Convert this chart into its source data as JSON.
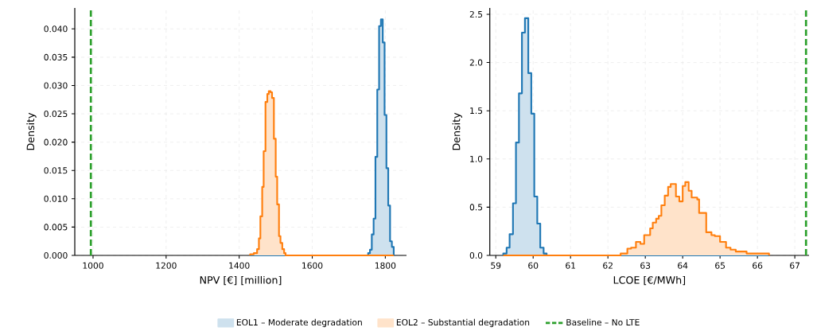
{
  "chart_data": [
    {
      "type": "histogram",
      "xlabel": "NPV [€] [million]",
      "ylabel": "Density",
      "xlim": [
        950,
        1858
      ],
      "ylim": [
        0,
        0.0437
      ],
      "xticks": [
        1000,
        1200,
        1400,
        1600,
        1800
      ],
      "yticks": [
        {
          "value": 0,
          "label": "0.000"
        },
        {
          "value": 0.005,
          "label": "0.005"
        },
        {
          "value": 0.01,
          "label": "0.010"
        },
        {
          "value": 0.015,
          "label": "0.015"
        },
        {
          "value": 0.02,
          "label": "0.020"
        },
        {
          "value": 0.025,
          "label": "0.025"
        },
        {
          "value": 0.03,
          "label": "0.030"
        },
        {
          "value": 0.035,
          "label": "0.035"
        },
        {
          "value": 0.04,
          "label": "0.040"
        }
      ],
      "grid": true,
      "legend": "bottom",
      "bins": [
        1430,
        1440,
        1449,
        1454,
        1458,
        1463,
        1467,
        1472,
        1477,
        1481,
        1486,
        1490,
        1495,
        1500,
        1504,
        1509,
        1513,
        1518,
        1523,
        1527,
        1753,
        1758,
        1763,
        1768,
        1773,
        1778,
        1783,
        1788,
        1793,
        1798,
        1803,
        1808,
        1813,
        1818,
        1823
      ],
      "series": [
        {
          "name": "EOL1 – Moderate degradation",
          "color": "#1f77b4",
          "values": [
            0,
            0,
            0,
            0,
            0,
            0,
            0,
            0,
            0,
            0,
            0,
            0,
            0,
            0,
            0,
            0,
            0,
            0,
            0,
            0,
            0.0004,
            0.001,
            0.0037,
            0.0065,
            0.0174,
            0.0293,
            0.0405,
            0.0417,
            0.0376,
            0.0248,
            0.0154,
            0.0088,
            0.0025,
            0.0015
          ]
        },
        {
          "name": "EOL2 – Substantial degradation",
          "color": "#ff7f0e",
          "values": [
            0.0002,
            0.0004,
            0.0011,
            0.003,
            0.0069,
            0.0121,
            0.0184,
            0.0271,
            0.0285,
            0.029,
            0.0288,
            0.0278,
            0.0206,
            0.0139,
            0.009,
            0.0034,
            0.0022,
            0.0011,
            0.0004,
            0,
            0,
            0,
            0,
            0,
            0,
            0,
            0,
            0,
            0,
            0,
            0,
            0,
            0,
            0
          ]
        }
      ],
      "ref_lines": [
        {
          "axis": "x",
          "value": 994,
          "label": "Baseline – No LTE",
          "color": "#2ca02c",
          "line_style": "dashed"
        }
      ]
    },
    {
      "type": "histogram",
      "xlabel": "LCOE [€/MWh]",
      "ylabel": "Density",
      "xlim": [
        58.84,
        67.38
      ],
      "ylim": [
        0,
        2.566
      ],
      "xticks": [
        59,
        60,
        61,
        62,
        63,
        64,
        65,
        66,
        67
      ],
      "yticks": [
        {
          "value": 0,
          "label": "0.0"
        },
        {
          "value": 0.5,
          "label": "0.5"
        },
        {
          "value": 1,
          "label": "1.0"
        },
        {
          "value": 1.5,
          "label": "1.5"
        },
        {
          "value": 2,
          "label": "2.0"
        },
        {
          "value": 2.5,
          "label": "2.5"
        }
      ],
      "grid": true,
      "bins": [
        59.2,
        59.29,
        59.37,
        59.46,
        59.54,
        59.62,
        59.7,
        59.78,
        59.87,
        59.95,
        60.03,
        60.11,
        60.19,
        60.28,
        60.36,
        62.34,
        62.52,
        62.62,
        62.75,
        62.87,
        62.97,
        63.13,
        63.2,
        63.29,
        63.36,
        63.43,
        63.52,
        63.61,
        63.68,
        63.82,
        63.91,
        64.0,
        64.07,
        64.16,
        64.24,
        64.39,
        64.44,
        64.63,
        64.77,
        64.86,
        65.0,
        65.16,
        65.28,
        65.42,
        65.71,
        66.31
      ],
      "series": [
        {
          "color": "#1f77b4",
          "values": [
            0.02,
            0.08,
            0.22,
            0.54,
            1.17,
            1.68,
            2.31,
            2.46,
            1.89,
            1.47,
            0.61,
            0.33,
            0.08,
            0.02,
            0,
            0,
            0,
            0,
            0,
            0,
            0,
            0,
            0,
            0,
            0,
            0,
            0,
            0,
            0,
            0,
            0,
            0,
            0,
            0,
            0,
            0,
            0,
            0,
            0,
            0,
            0,
            0,
            0,
            0,
            0
          ]
        },
        {
          "color": "#ff7f0e",
          "values": [
            0,
            0,
            0,
            0,
            0,
            0,
            0,
            0,
            0,
            0,
            0,
            0,
            0,
            0,
            0,
            0.02,
            0.07,
            0.08,
            0.14,
            0.12,
            0.21,
            0.28,
            0.34,
            0.38,
            0.41,
            0.52,
            0.62,
            0.71,
            0.74,
            0.61,
            0.56,
            0.72,
            0.76,
            0.67,
            0.6,
            0.58,
            0.44,
            0.24,
            0.21,
            0.2,
            0.14,
            0.08,
            0.06,
            0.04,
            0.02
          ]
        }
      ],
      "ref_lines": [
        {
          "axis": "x",
          "value": 67.3,
          "color": "#2ca02c",
          "line_style": "dashed"
        }
      ]
    }
  ]
}
